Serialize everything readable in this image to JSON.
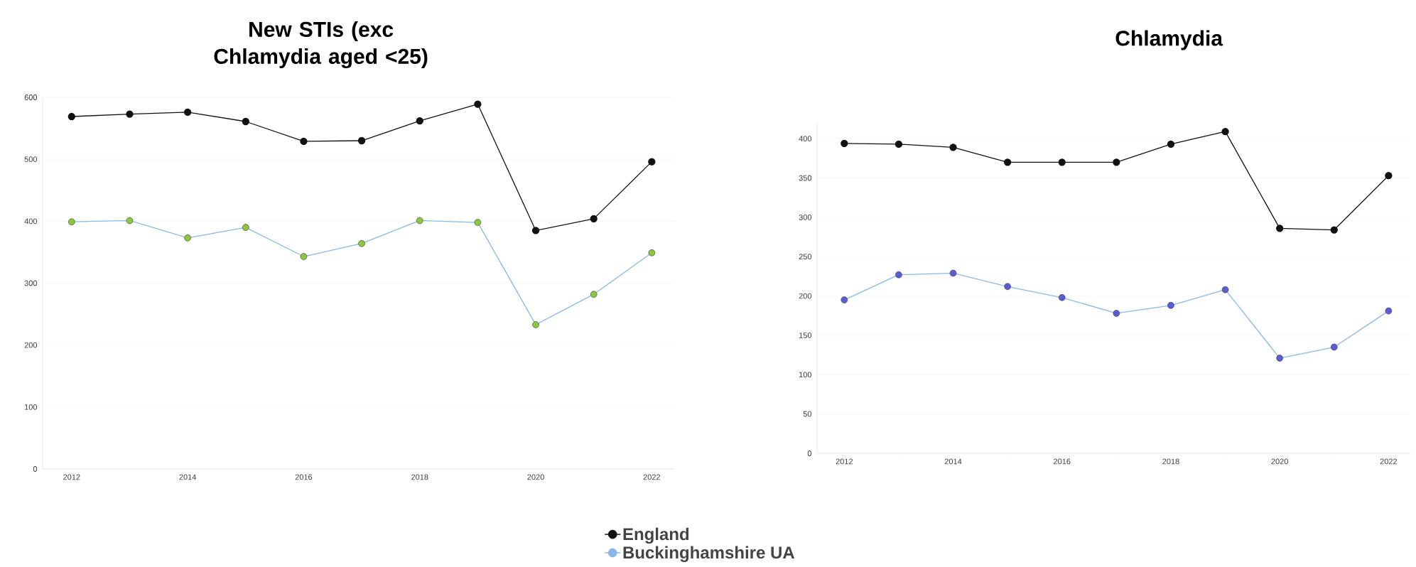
{
  "chart_data": [
    {
      "type": "line",
      "title": "New STIs (exc Chlamydia aged <25)",
      "x": [
        2012,
        2013,
        2014,
        2015,
        2016,
        2017,
        2018,
        2019,
        2020,
        2021,
        2022
      ],
      "xlim": [
        2011.5,
        2022.4
      ],
      "ylim": [
        0,
        600
      ],
      "xticks": [
        2012,
        {
          "value": 2013,
          "label": null
        },
        2014,
        {
          "value": 2015,
          "label": null
        },
        2016,
        {
          "value": 2017,
          "label": null
        },
        2018,
        {
          "value": 2019,
          "label": null
        },
        2020,
        {
          "value": 2021,
          "label": null
        },
        2022
      ],
      "yticks": [
        0,
        100,
        200,
        300,
        400,
        500,
        600
      ],
      "grid": "y",
      "legend": "bottom",
      "marker": "circle",
      "line_style": "solid",
      "series": [
        {
          "name": "England",
          "color": "#111111",
          "values": [
            569,
            573,
            576,
            561,
            529,
            530,
            562,
            589,
            385,
            404,
            496
          ]
        },
        {
          "name": "Buckinghamshire UA",
          "color": "#8ab8e6",
          "colors": [
            "#8dc63f",
            "#8dc63f",
            "#8dc63f",
            "#8dc63f",
            "#8dc63f",
            "#8dc63f",
            "#8dc63f",
            "#8dc63f",
            "#8dc63f",
            "#8dc63f",
            "#8dc63f"
          ],
          "values": [
            399,
            401,
            373,
            390,
            343,
            364,
            401,
            398,
            233,
            282,
            349
          ]
        }
      ]
    },
    {
      "type": "line",
      "title": "Chlamydia",
      "x": [
        2012,
        2013,
        2014,
        2015,
        2016,
        2017,
        2018,
        2019,
        2020,
        2021,
        2022
      ],
      "xlim": [
        2011.5,
        2022.4
      ],
      "ylim": [
        0,
        420
      ],
      "xticks": [
        2012,
        {
          "value": 2013,
          "label": null
        },
        2014,
        {
          "value": 2015,
          "label": null
        },
        2016,
        {
          "value": 2017,
          "label": null
        },
        2018,
        {
          "value": 2019,
          "label": null
        },
        2020,
        {
          "value": 2021,
          "label": null
        },
        2022
      ],
      "yticks": [
        0,
        50,
        100,
        150,
        200,
        250,
        300,
        350,
        400
      ],
      "grid": "y",
      "marker": "circle",
      "line_style": "solid",
      "series": [
        {
          "color": "#111111",
          "values": [
            394,
            393,
            389,
            370,
            370,
            370,
            393,
            409,
            286,
            284,
            353
          ]
        },
        {
          "color": "#8ab8e6",
          "colors": [
            "#5b5bd6",
            "#5b5bd6",
            "#5b5bd6",
            "#5b5bd6",
            "#5b5bd6",
            "#5b5bd6",
            "#5b5bd6",
            "#5b5bd6",
            "#5b5bd6",
            "#5b5bd6",
            "#5b5bd6"
          ],
          "values": [
            195,
            227,
            229,
            212,
            198,
            178,
            188,
            208,
            121,
            135,
            181
          ]
        }
      ]
    }
  ]
}
